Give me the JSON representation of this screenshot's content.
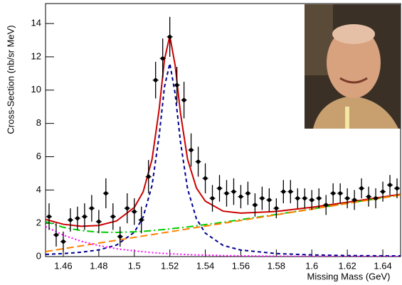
{
  "chart_data": {
    "type": "scatter",
    "x_label": "Missing Mass (GeV)",
    "y_label": "Cross-Section (nb/sr MeV)",
    "xlim": [
      1.45,
      1.65
    ],
    "ylim": [
      0,
      15.2
    ],
    "xticks": [
      1.46,
      1.48,
      1.5,
      1.52,
      1.54,
      1.56,
      1.58,
      1.6,
      1.62,
      1.64
    ],
    "yticks": [
      0,
      2,
      4,
      6,
      8,
      10,
      12,
      14
    ],
    "points": {
      "color": "#000000",
      "x": [
        1.452,
        1.456,
        1.46,
        1.464,
        1.468,
        1.472,
        1.476,
        1.48,
        1.484,
        1.488,
        1.492,
        1.496,
        1.5,
        1.504,
        1.508,
        1.512,
        1.516,
        1.52,
        1.524,
        1.528,
        1.532,
        1.536,
        1.54,
        1.544,
        1.548,
        1.552,
        1.556,
        1.56,
        1.564,
        1.568,
        1.572,
        1.576,
        1.58,
        1.584,
        1.588,
        1.592,
        1.596,
        1.6,
        1.604,
        1.608,
        1.612,
        1.616,
        1.62,
        1.624,
        1.628,
        1.632,
        1.636,
        1.64,
        1.644,
        1.648
      ],
      "values": [
        2.4,
        1.3,
        0.9,
        2.2,
        2.3,
        2.4,
        2.9,
        2.1,
        3.8,
        2.4,
        1.2,
        2.9,
        2.7,
        2.2,
        4.8,
        10.6,
        11.9,
        13.2,
        10.3,
        9.4,
        6.4,
        5.7,
        4.7,
        3.5,
        4.1,
        3.8,
        3.9,
        3.6,
        3.8,
        3.1,
        3.5,
        3.4,
        2.9,
        3.9,
        3.9,
        3.5,
        3.5,
        3.4,
        3.5,
        3.1,
        3.8,
        3.8,
        3.5,
        3.4,
        4.1,
        3.6,
        3.5,
        3.9,
        4.3,
        4.1
      ],
      "errors": [
        0.8,
        0.7,
        0.6,
        0.7,
        0.7,
        0.8,
        0.8,
        0.7,
        0.9,
        0.8,
        0.6,
        0.9,
        0.8,
        0.8,
        1.0,
        1.1,
        1.2,
        1.2,
        1.1,
        1.1,
        1.0,
        0.9,
        0.9,
        0.8,
        0.8,
        0.8,
        0.8,
        0.7,
        0.7,
        0.7,
        0.7,
        0.7,
        0.6,
        0.7,
        0.7,
        0.6,
        0.6,
        0.6,
        0.6,
        0.6,
        0.6,
        0.6,
        0.6,
        0.6,
        0.6,
        0.6,
        0.6,
        0.6,
        0.6,
        0.6
      ]
    },
    "series": [
      {
        "color": "#cc0000",
        "dash": "none",
        "width": 2,
        "x": [
          1.45,
          1.46,
          1.47,
          1.48,
          1.49,
          1.5,
          1.505,
          1.51,
          1.514,
          1.517,
          1.52,
          1.523,
          1.526,
          1.53,
          1.535,
          1.54,
          1.55,
          1.56,
          1.58,
          1.6,
          1.62,
          1.65
        ],
        "values": [
          2.23,
          1.94,
          1.82,
          1.87,
          2.14,
          2.95,
          3.89,
          5.84,
          8.85,
          11.83,
          13.26,
          11.5,
          8.63,
          5.85,
          4.12,
          3.33,
          2.73,
          2.61,
          2.71,
          2.96,
          3.26,
          3.74
        ]
      },
      {
        "color": "#000090",
        "dash": "5,4",
        "width": 2,
        "x": [
          1.45,
          1.46,
          1.47,
          1.48,
          1.49,
          1.5,
          1.505,
          1.51,
          1.514,
          1.517,
          1.52,
          1.523,
          1.526,
          1.53,
          1.535,
          1.54,
          1.55,
          1.56,
          1.58,
          1.6,
          1.62,
          1.65
        ],
        "values": [
          0.13,
          0.18,
          0.26,
          0.4,
          0.69,
          1.46,
          2.37,
          4.28,
          7.25,
          10.2,
          11.6,
          9.8,
          6.9,
          4.07,
          2.27,
          1.41,
          0.67,
          0.39,
          0.18,
          0.1,
          0.06,
          0.04
        ]
      },
      {
        "color": "#00cc00",
        "dash": "10,4,2,4",
        "width": 2,
        "x": [
          1.45,
          1.46,
          1.47,
          1.48,
          1.49,
          1.5,
          1.505,
          1.51,
          1.514,
          1.517,
          1.52,
          1.523,
          1.526,
          1.53,
          1.535,
          1.54,
          1.55,
          1.56,
          1.58,
          1.6,
          1.62,
          1.65
        ],
        "values": [
          2.1,
          1.76,
          1.56,
          1.47,
          1.45,
          1.49,
          1.52,
          1.56,
          1.6,
          1.63,
          1.66,
          1.7,
          1.73,
          1.78,
          1.85,
          1.92,
          2.06,
          2.22,
          2.53,
          2.86,
          3.2,
          3.7
        ]
      },
      {
        "color": "#ff8000",
        "dash": "10,5",
        "width": 2,
        "x": [
          1.45,
          1.46,
          1.47,
          1.48,
          1.49,
          1.5,
          1.505,
          1.51,
          1.514,
          1.517,
          1.52,
          1.523,
          1.526,
          1.53,
          1.535,
          1.54,
          1.55,
          1.56,
          1.58,
          1.6,
          1.62,
          1.65
        ],
        "values": [
          0.3,
          0.47,
          0.64,
          0.81,
          0.98,
          1.15,
          1.235,
          1.32,
          1.39,
          1.44,
          1.49,
          1.54,
          1.59,
          1.66,
          1.75,
          1.83,
          2.0,
          2.17,
          2.51,
          2.85,
          3.19,
          3.7
        ]
      },
      {
        "color": "#ff00ff",
        "dash": "2,3",
        "width": 2,
        "x": [
          1.45,
          1.46,
          1.47,
          1.48,
          1.49,
          1.5,
          1.505,
          1.51,
          1.514,
          1.517,
          1.52,
          1.523,
          1.526,
          1.53,
          1.535,
          1.54,
          1.55,
          1.56,
          1.58,
          1.6,
          1.62,
          1.65
        ],
        "values": [
          1.8,
          1.29,
          0.92,
          0.66,
          0.47,
          0.34,
          0.29,
          0.24,
          0.21,
          0.19,
          0.17,
          0.16,
          0.14,
          0.12,
          0.1,
          0.09,
          0.06,
          0.046,
          0.024,
          0.012,
          0.006,
          0.002
        ]
      }
    ]
  }
}
